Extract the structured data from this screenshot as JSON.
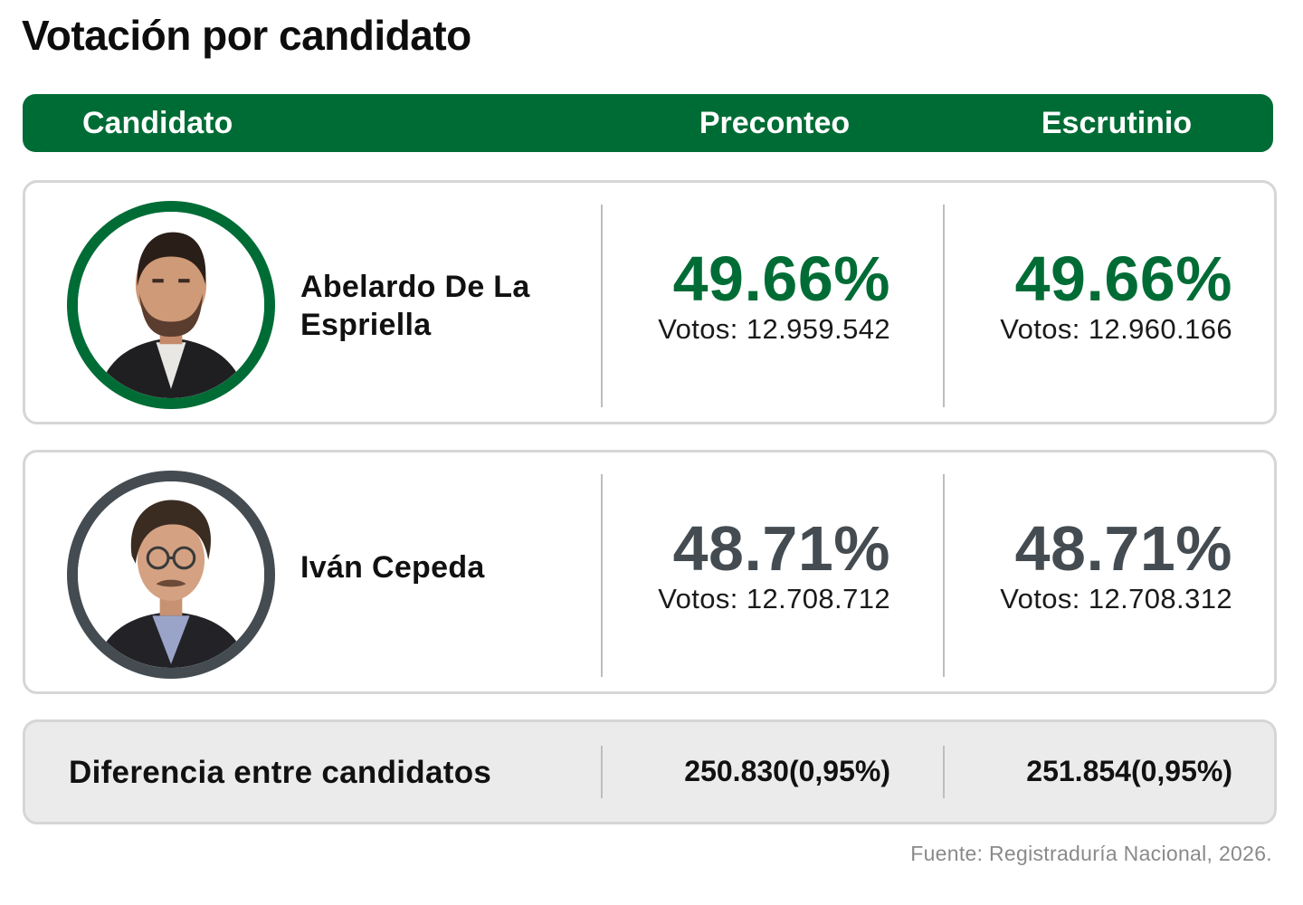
{
  "title": "Votación por candidato",
  "colors": {
    "accent_green": "#006c35",
    "second_gray": "#444c52",
    "card_border": "#d6d6d6",
    "diff_background": "#ebebeb"
  },
  "header": {
    "candidate": "Candidato",
    "preconteo": "Preconteo",
    "escrutinio": "Escrutinio"
  },
  "candidates": [
    {
      "name": "Abelardo De La Espriella",
      "photo_icon": "candidate-photo-abelardo",
      "preconteo": {
        "percent": "49.66%",
        "votes": "Votos: 12.959.542"
      },
      "escrutinio": {
        "percent": "49.66%",
        "votes": "Votos: 12.960.166"
      }
    },
    {
      "name": "Iván Cepeda",
      "photo_icon": "candidate-photo-ivan",
      "preconteo": {
        "percent": "48.71%",
        "votes": "Votos: 12.708.712"
      },
      "escrutinio": {
        "percent": "48.71%",
        "votes": "Votos: 12.708.312"
      }
    }
  ],
  "difference": {
    "label": "Diferencia entre candidatos",
    "preconteo": "250.830(0,95%)",
    "escrutinio": "251.854(0,95%)"
  },
  "source": "Fuente: Registraduría Nacional, 2026."
}
